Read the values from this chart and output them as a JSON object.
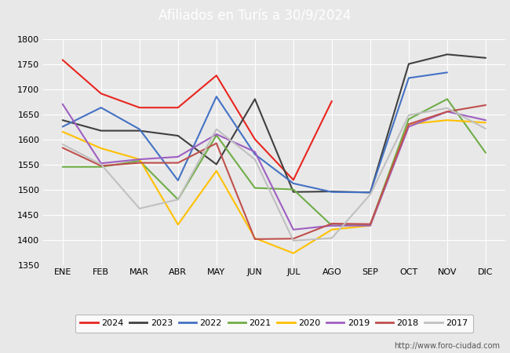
{
  "title": "Afiliados en Turís a 30/9/2024",
  "title_color": "#ffffff",
  "title_bg_color": "#4472c4",
  "months": [
    "ENE",
    "FEB",
    "MAR",
    "ABR",
    "MAY",
    "JUN",
    "JUL",
    "AGO",
    "SEP",
    "OCT",
    "NOV",
    "DIC"
  ],
  "ylim": [
    1350,
    1800
  ],
  "yticks": [
    1350,
    1400,
    1450,
    1500,
    1550,
    1600,
    1650,
    1700,
    1750,
    1800
  ],
  "series": {
    "2024": {
      "color": "#e8251f",
      "data": [
        1758,
        1691,
        1663,
        1663,
        1727,
        1600,
        1519,
        1676,
        null,
        null,
        null,
        null
      ]
    },
    "2023": {
      "color": "#404040",
      "data": [
        1638,
        1617,
        1617,
        1607,
        1550,
        1680,
        1495,
        1496,
        1494,
        1750,
        1769,
        1762
      ]
    },
    "2022": {
      "color": "#4472c4",
      "data": [
        1625,
        1663,
        1620,
        1518,
        1685,
        1570,
        1512,
        1495,
        1494,
        1722,
        1733,
        null
      ]
    },
    "2021": {
      "color": "#70ad47",
      "data": [
        1545,
        1545,
        1557,
        1480,
        1608,
        1503,
        1500,
        1428,
        1430,
        1640,
        1680,
        1573
      ]
    },
    "2020": {
      "color": "#ffc000",
      "data": [
        1615,
        1582,
        1560,
        1430,
        1537,
        1403,
        1373,
        1420,
        1428,
        1630,
        1638,
        1633
      ]
    },
    "2019": {
      "color": "#9e5fc1",
      "data": [
        1670,
        1552,
        1560,
        1565,
        1610,
        1575,
        1420,
        1428,
        1428,
        1625,
        1655,
        1638
      ]
    },
    "2018": {
      "color": "#c0504d",
      "data": [
        1583,
        1547,
        1553,
        1553,
        1592,
        1401,
        1402,
        1432,
        1431,
        1630,
        1655,
        1668
      ]
    },
    "2017": {
      "color": "#c0c0c0",
      "data": [
        1590,
        1550,
        1462,
        1480,
        1620,
        1560,
        1398,
        1403,
        1490,
        1648,
        1662,
        1621
      ]
    }
  },
  "legend_order": [
    "2024",
    "2023",
    "2022",
    "2021",
    "2020",
    "2019",
    "2018",
    "2017"
  ],
  "bg_color": "#e8e8e8",
  "plot_bg_color": "#e8e8e8",
  "grid_color": "#ffffff",
  "url": "http://www.foro-ciudad.com"
}
